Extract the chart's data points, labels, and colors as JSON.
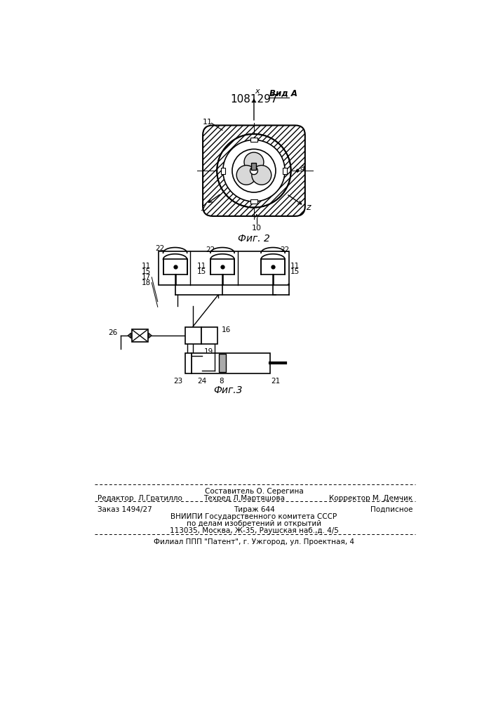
{
  "title": "1081297",
  "fig2_caption": "Фиг. 2",
  "fig3_caption": "Фиг.3",
  "view_label": "Вид А",
  "bg_color": "#ffffff",
  "line_color": "#000000",
  "footer": {
    "line1": "Составитель О. Серегина",
    "line2_left": "Редактор  Л.Гратилло",
    "line2_mid": "Техред Л.Мартяшова",
    "line2_right": "Корректор М. Демчик",
    "line3_left": "Заказ 1494/27",
    "line3_mid": "Тираж 644",
    "line3_right": "Подписное",
    "line4": "ВНИИПИ Государственного комитета СССР",
    "line5": "по делам изобретений и открытий",
    "line6": "113035, Москва, Ж-35, Раушская наб.,д. 4/5",
    "line7": "Филиал ППП \"Патент\", г. Ужгород, ул. Проектная, 4"
  }
}
